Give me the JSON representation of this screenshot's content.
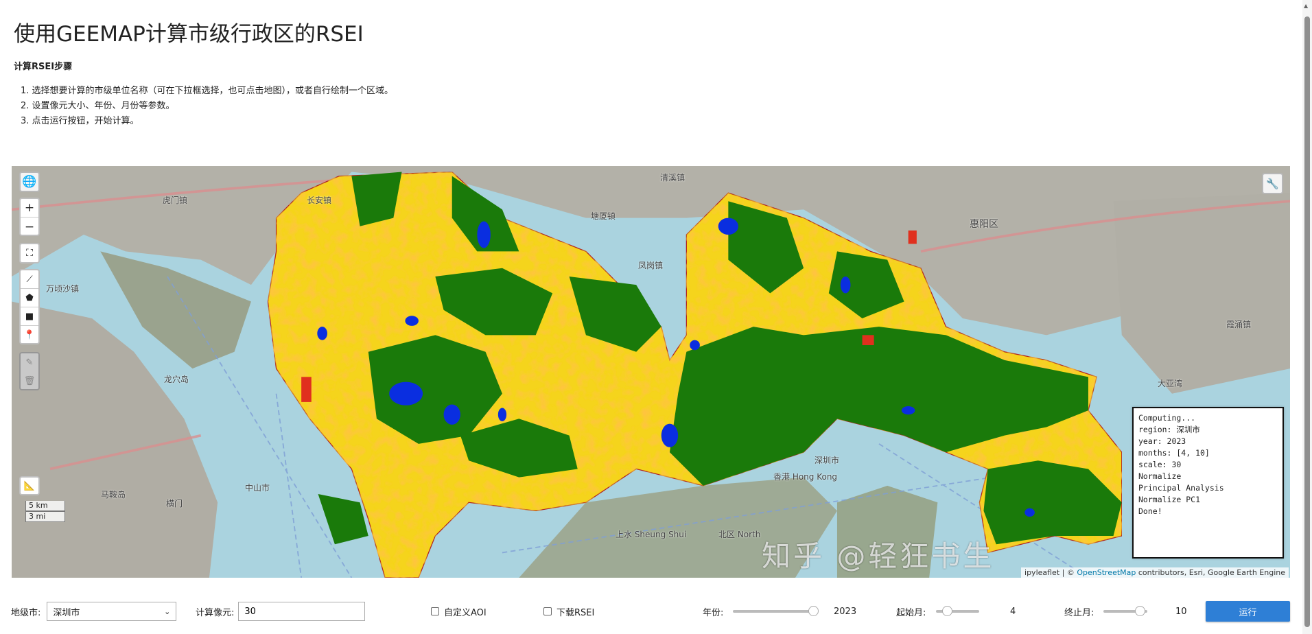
{
  "page": {
    "title": "使用GEEMAP计算市级行政区的RSEI",
    "subtitle": "计算RSEI步骤",
    "steps": [
      "1. 选择想要计算的市级单位名称（可在下拉框选择，也可点击地图），或者自行绘制一个区域。",
      "2. 设置像元大小、年份、月份等参数。",
      "3. 点击运行按钮，开始计算。"
    ]
  },
  "map": {
    "labels": [
      "虎门镇",
      "长安镇",
      "清溪镇",
      "塘厦镇",
      "凤岗镇",
      "惠阳区",
      "万顷沙镇",
      "龙穴岛",
      "马鞍岛",
      "大亚湾",
      "深圳市",
      "香港 Hong Kong",
      "上水 Sheung Shui",
      "北区 North",
      "中山市",
      "横门",
      "霞涌镇"
    ],
    "scale_km": "5 km",
    "scale_mi": "3 mi",
    "attribution_prefix": "ipyleaflet | © ",
    "attribution_osm": "OpenStreetMap",
    "attribution_rest": " contributors, Esri, Google Earth Engine",
    "watermark": "知乎 @轻狂书生",
    "colors": {
      "water": "#aad3df",
      "land": "#a8a8a0",
      "high": "#1a7a0a",
      "mid": "#f5d41b",
      "low": "#f08a16",
      "worst": "#e0301e",
      "waterbody": "#0a2ee0"
    }
  },
  "log": {
    "lines": [
      "Computing...",
      "region: 深圳市",
      "year: 2023",
      "months: [4, 10]",
      "scale: 30",
      "Normalize",
      "Principal Analysis",
      "Normalize PC1",
      "Done!"
    ]
  },
  "controls": {
    "city_label": "地级市:",
    "city_value": "深圳市",
    "pixel_label": "计算像元:",
    "pixel_value": "30",
    "aoi_label": "自定义AOI",
    "aoi_checked": false,
    "download_label": "下载RSEI",
    "download_checked": false,
    "year_label": "年份:",
    "year_value": "2023",
    "year_fraction": 1.0,
    "start_label": "起始月:",
    "start_value": "4",
    "end_label": "终止月:",
    "end_value": "10",
    "run_label": "运行"
  }
}
